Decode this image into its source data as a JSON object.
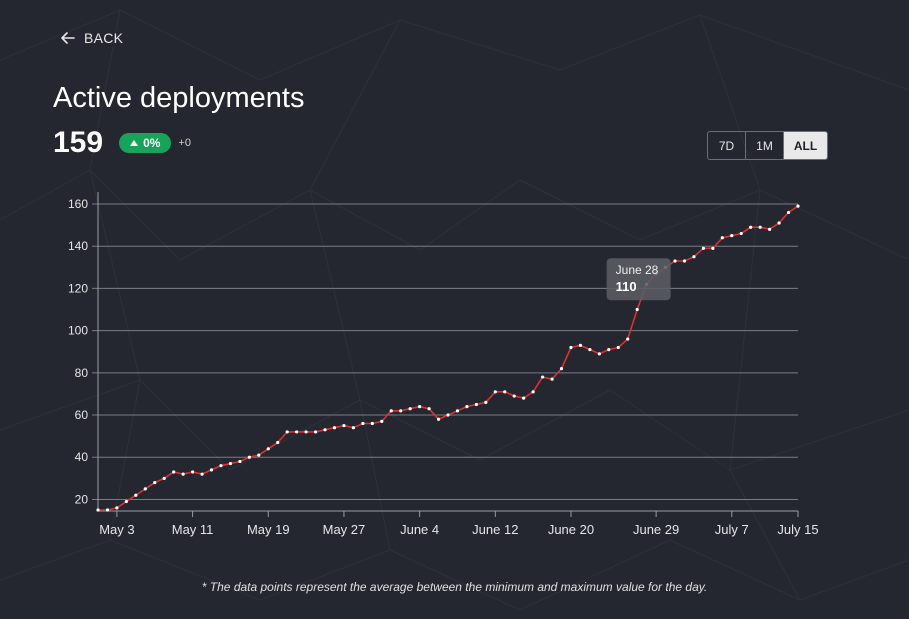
{
  "nav": {
    "back_label": "BACK"
  },
  "header": {
    "title": "Active deployments",
    "value": "159",
    "change_percent": "0%",
    "change_abs": "+0"
  },
  "range_selector": {
    "options": [
      "7D",
      "1M",
      "ALL"
    ],
    "selected": "ALL"
  },
  "tooltip": {
    "date": "June 28",
    "value": "110"
  },
  "footnote": "* The data points represent the average between the minimum and maximum value for the day.",
  "colors": {
    "background": "#24272f",
    "line": "#e0302f",
    "badge": "#17a35a",
    "grid": "#7a7d84"
  },
  "chart_data": {
    "type": "line",
    "title": "Active deployments",
    "xlabel": "",
    "ylabel": "",
    "grid": true,
    "ylim": [
      15,
      160
    ],
    "yticks": [
      20,
      40,
      60,
      80,
      100,
      120,
      140,
      160
    ],
    "xlim": [
      "May 1",
      "July 15"
    ],
    "xticks": [
      "May 3",
      "May 11",
      "May 19",
      "May 27",
      "June 4",
      "June 12",
      "June 20",
      "June 29",
      "July 7",
      "July 15"
    ],
    "series": [
      {
        "values": [
          15,
          15,
          16,
          19,
          22,
          25,
          28,
          30,
          33,
          32,
          33,
          32,
          34,
          36,
          37,
          38,
          40,
          41,
          44,
          47,
          52,
          52,
          52,
          52,
          53,
          54,
          55,
          54,
          56,
          56,
          57,
          62,
          62,
          63,
          64,
          63,
          58,
          60,
          62,
          64,
          65,
          66,
          71,
          71,
          69,
          68,
          71,
          78,
          77,
          82,
          92,
          93,
          91,
          89,
          91,
          92,
          96,
          110,
          122,
          127,
          130,
          133,
          133,
          135,
          139,
          139,
          144,
          145,
          146,
          149,
          149,
          148,
          151,
          156,
          159
        ]
      }
    ]
  }
}
